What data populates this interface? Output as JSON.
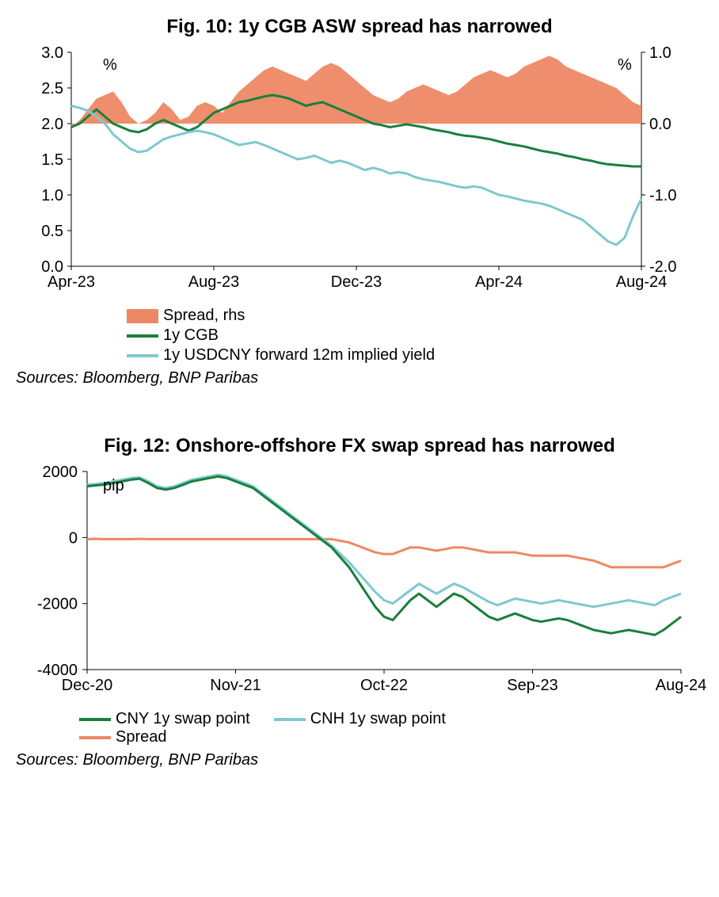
{
  "chart1": {
    "type": "line-area-dual-axis",
    "title": "Fig. 10: 1y CGB ASW spread has narrowed",
    "sources": "Sources: Bloomberg, BNP Paribas",
    "left_unit": "%",
    "right_unit": "%",
    "left_axis": {
      "min": 0.0,
      "max": 3.0,
      "step": 0.5
    },
    "right_axis": {
      "min": -2.0,
      "max": 1.0,
      "step": 1.0
    },
    "x_ticks": [
      "Apr-23",
      "Aug-23",
      "Dec-23",
      "Apr-24",
      "Aug-24"
    ],
    "colors": {
      "spread": "#ed8864",
      "cgb": "#197f3c",
      "implied": "#7ec8d0",
      "axis": "#000000",
      "tick_text": "#000000",
      "bg": "#ffffff"
    },
    "line_width": 3,
    "area_baseline_right": 0.0,
    "legend": [
      {
        "label": "Spread, rhs",
        "type": "fill",
        "color": "#ed8864"
      },
      {
        "label": "1y CGB",
        "type": "line",
        "color": "#197f3c"
      },
      {
        "label": "1y USDCNY forward 12m implied yield",
        "type": "line",
        "color": "#7ec8d0"
      }
    ],
    "series_spread_rhs": [
      -0.05,
      0.05,
      0.2,
      0.35,
      0.4,
      0.45,
      0.3,
      0.1,
      0.0,
      0.05,
      0.15,
      0.3,
      0.2,
      0.05,
      0.1,
      0.25,
      0.3,
      0.25,
      0.15,
      0.3,
      0.45,
      0.55,
      0.65,
      0.75,
      0.8,
      0.75,
      0.7,
      0.65,
      0.6,
      0.7,
      0.8,
      0.85,
      0.8,
      0.7,
      0.6,
      0.5,
      0.4,
      0.35,
      0.3,
      0.35,
      0.45,
      0.5,
      0.55,
      0.5,
      0.45,
      0.4,
      0.45,
      0.55,
      0.65,
      0.7,
      0.75,
      0.7,
      0.65,
      0.7,
      0.8,
      0.85,
      0.9,
      0.95,
      0.9,
      0.8,
      0.75,
      0.7,
      0.65,
      0.6,
      0.55,
      0.5,
      0.4,
      0.3,
      0.25
    ],
    "series_cgb_left": [
      1.95,
      2.0,
      2.1,
      2.2,
      2.1,
      2.0,
      1.95,
      1.9,
      1.88,
      1.92,
      2.0,
      2.05,
      2.0,
      1.95,
      1.9,
      1.95,
      2.05,
      2.15,
      2.2,
      2.25,
      2.3,
      2.32,
      2.35,
      2.38,
      2.4,
      2.38,
      2.35,
      2.3,
      2.25,
      2.28,
      2.3,
      2.25,
      2.2,
      2.15,
      2.1,
      2.05,
      2.0,
      1.98,
      1.95,
      1.97,
      1.99,
      1.97,
      1.95,
      1.92,
      1.9,
      1.88,
      1.85,
      1.83,
      1.82,
      1.8,
      1.78,
      1.75,
      1.72,
      1.7,
      1.68,
      1.65,
      1.62,
      1.6,
      1.58,
      1.55,
      1.53,
      1.5,
      1.48,
      1.45,
      1.43,
      1.42,
      1.41,
      1.4,
      1.4
    ],
    "series_implied_left": [
      2.25,
      2.22,
      2.18,
      2.1,
      2.0,
      1.85,
      1.75,
      1.65,
      1.6,
      1.62,
      1.7,
      1.78,
      1.82,
      1.85,
      1.88,
      1.9,
      1.88,
      1.85,
      1.8,
      1.75,
      1.7,
      1.72,
      1.74,
      1.7,
      1.65,
      1.6,
      1.55,
      1.5,
      1.52,
      1.55,
      1.5,
      1.45,
      1.48,
      1.45,
      1.4,
      1.35,
      1.38,
      1.35,
      1.3,
      1.32,
      1.3,
      1.25,
      1.22,
      1.2,
      1.18,
      1.15,
      1.12,
      1.1,
      1.12,
      1.1,
      1.05,
      1.0,
      0.98,
      0.95,
      0.92,
      0.9,
      0.88,
      0.85,
      0.8,
      0.75,
      0.7,
      0.65,
      0.55,
      0.45,
      0.35,
      0.3,
      0.4,
      0.7,
      0.95
    ]
  },
  "chart2": {
    "type": "line",
    "title": "Fig. 12: Onshore-offshore FX swap spread has narrowed",
    "sources": "Sources: Bloomberg, BNP Paribas",
    "unit": "pip",
    "y_axis": {
      "min": -4000,
      "max": 2000,
      "step": 2000
    },
    "x_ticks": [
      "Dec-20",
      "Nov-21",
      "Oct-22",
      "Sep-23",
      "Aug-24"
    ],
    "colors": {
      "cny": "#197f3c",
      "cnh": "#7ec8d0",
      "spread": "#ed8864",
      "axis": "#000000",
      "bg": "#ffffff"
    },
    "line_width": 3,
    "legend": [
      {
        "label": "CNY 1y swap point",
        "type": "line",
        "color": "#197f3c"
      },
      {
        "label": "CNH 1y swap point",
        "type": "line",
        "color": "#7ec8d0"
      },
      {
        "label": "Spread",
        "type": "line",
        "color": "#ed8864"
      }
    ],
    "series_cny": [
      1550,
      1580,
      1600,
      1650,
      1700,
      1750,
      1780,
      1650,
      1500,
      1450,
      1500,
      1600,
      1700,
      1750,
      1800,
      1850,
      1800,
      1700,
      1600,
      1500,
      1300,
      1100,
      900,
      700,
      500,
      300,
      100,
      -100,
      -300,
      -600,
      -900,
      -1300,
      -1700,
      -2100,
      -2400,
      -2500,
      -2200,
      -1900,
      -1700,
      -1900,
      -2100,
      -1900,
      -1700,
      -1800,
      -2000,
      -2200,
      -2400,
      -2500,
      -2400,
      -2300,
      -2400,
      -2500,
      -2550,
      -2500,
      -2450,
      -2500,
      -2600,
      -2700,
      -2800,
      -2850,
      -2900,
      -2850,
      -2800,
      -2850,
      -2900,
      -2950,
      -2800,
      -2600,
      -2400
    ],
    "series_cnh": [
      1600,
      1620,
      1650,
      1700,
      1750,
      1800,
      1820,
      1700,
      1550,
      1500,
      1550,
      1650,
      1750,
      1800,
      1850,
      1900,
      1850,
      1750,
      1650,
      1550,
      1350,
      1150,
      950,
      750,
      550,
      350,
      150,
      -50,
      -250,
      -500,
      -750,
      -1050,
      -1350,
      -1650,
      -1900,
      -2000,
      -1800,
      -1600,
      -1400,
      -1550,
      -1700,
      -1550,
      -1400,
      -1500,
      -1650,
      -1800,
      -1950,
      -2050,
      -1950,
      -1850,
      -1900,
      -1950,
      -2000,
      -1950,
      -1900,
      -1950,
      -2000,
      -2050,
      -2100,
      -2050,
      -2000,
      -1950,
      -1900,
      -1950,
      -2000,
      -2050,
      -1900,
      -1800,
      -1700
    ],
    "series_spread": [
      -50,
      -40,
      -50,
      -50,
      -50,
      -50,
      -40,
      -50,
      -50,
      -50,
      -50,
      -50,
      -50,
      -50,
      -50,
      -50,
      -50,
      -50,
      -50,
      -50,
      -50,
      -50,
      -50,
      -50,
      -50,
      -50,
      -50,
      -50,
      -50,
      -100,
      -150,
      -250,
      -350,
      -450,
      -500,
      -500,
      -400,
      -300,
      -300,
      -350,
      -400,
      -350,
      -300,
      -300,
      -350,
      -400,
      -450,
      -450,
      -450,
      -450,
      -500,
      -550,
      -550,
      -550,
      -550,
      -550,
      -600,
      -650,
      -700,
      -800,
      -900,
      -900,
      -900,
      -900,
      -900,
      -900,
      -900,
      -800,
      -700
    ]
  }
}
